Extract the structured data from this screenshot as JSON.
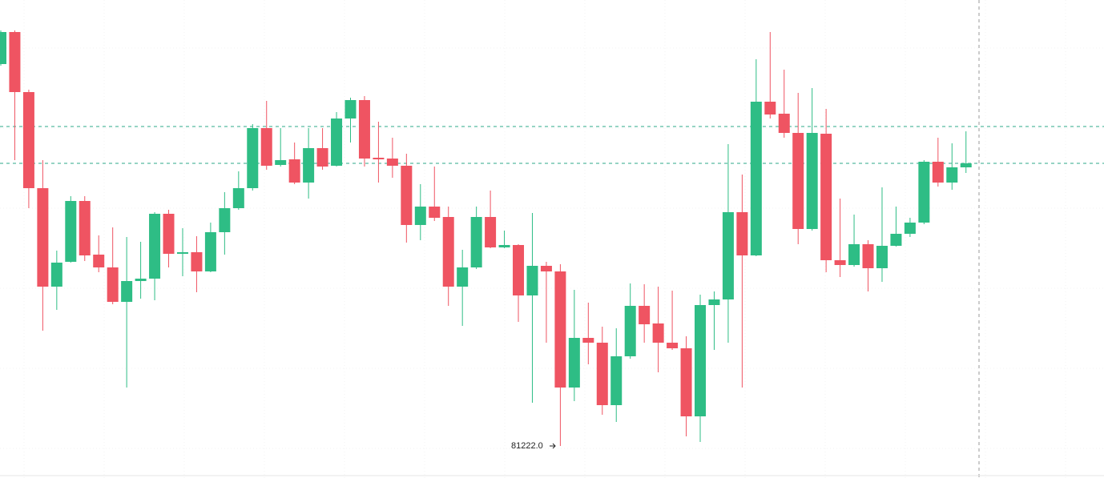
{
  "chart_data": {
    "type": "candlestick",
    "ylim": [
      80822,
      86792
    ],
    "up_color": "#2ebd85",
    "down_color": "#ef5462",
    "price_line_color": "#2ea889",
    "open": [
      85992,
      86392,
      85642,
      84442,
      83212,
      83522,
      84282,
      83612,
      83452,
      83022,
      83282,
      83312,
      84122,
      83622,
      83642,
      83402,
      83892,
      84192,
      84442,
      85192,
      84732,
      84802,
      84512,
      84942,
      84722,
      85312,
      85542,
      84822,
      84812,
      84722,
      83982,
      84212,
      84082,
      83212,
      83452,
      84082,
      83702,
      83732,
      83102,
      83472,
      83402,
      81952,
      82572,
      82512,
      81732,
      82342,
      82972,
      82752,
      82512,
      82442,
      81592,
      82982,
      83052,
      84142,
      83602,
      85522,
      85372,
      85132,
      83932,
      85122,
      83542,
      83482,
      83742,
      83442,
      83722,
      83872,
      84012,
      84772,
      84512,
      84702
    ],
    "high": [
      86412,
      86412,
      85672,
      84792,
      83662,
      84342,
      84342,
      83852,
      83952,
      83832,
      83772,
      84142,
      84172,
      83942,
      83842,
      84012,
      84392,
      84652,
      85242,
      85532,
      85192,
      85012,
      85192,
      85192,
      85392,
      85572,
      85592,
      85272,
      85072,
      84872,
      84492,
      84712,
      84212,
      83672,
      84212,
      84412,
      83912,
      83742,
      84132,
      83522,
      83492,
      83172,
      83012,
      82712,
      82692,
      83252,
      83242,
      83212,
      83162,
      82592,
      83112,
      83152,
      84992,
      84612,
      86052,
      86392,
      85922,
      85632,
      85692,
      85432,
      84312,
      84112,
      83792,
      84452,
      84212,
      84072,
      84792,
      85072,
      85002,
      85152
    ],
    "low": [
      85972,
      84792,
      84192,
      82662,
      82922,
      83512,
      83532,
      83392,
      82992,
      81952,
      83062,
      83042,
      83452,
      83342,
      83142,
      83392,
      83612,
      84172,
      84412,
      84672,
      84712,
      84492,
      84312,
      84672,
      84712,
      85012,
      84712,
      84512,
      84572,
      83762,
      83792,
      84032,
      82972,
      82722,
      83432,
      83692,
      83692,
      82772,
      81762,
      82512,
      81222,
      81782,
      82242,
      81612,
      81522,
      82312,
      82512,
      82142,
      82422,
      81342,
      81272,
      82422,
      82512,
      81952,
      83592,
      85312,
      85072,
      83742,
      83912,
      83392,
      83332,
      83462,
      83152,
      83272,
      83712,
      83832,
      83992,
      84462,
      84422,
      84632
    ],
    "close": [
      86392,
      85642,
      84442,
      83212,
      83512,
      84282,
      83602,
      83452,
      83022,
      83282,
      83312,
      84122,
      83622,
      83642,
      83402,
      83892,
      84192,
      84442,
      85192,
      84722,
      84792,
      84512,
      84942,
      84712,
      85312,
      85542,
      84812,
      84802,
      84722,
      83982,
      84212,
      84072,
      83212,
      83452,
      84082,
      83702,
      83732,
      83102,
      83472,
      83402,
      81952,
      82572,
      82512,
      81732,
      82342,
      82972,
      82742,
      82512,
      82442,
      81592,
      82982,
      83052,
      84142,
      83602,
      85522,
      85362,
      85132,
      83932,
      85132,
      83542,
      83482,
      83742,
      83442,
      83722,
      83872,
      84012,
      84772,
      84512,
      84702,
      84752
    ],
    "price_lines": [
      85212,
      84752
    ],
    "annotation": "81222.0"
  }
}
